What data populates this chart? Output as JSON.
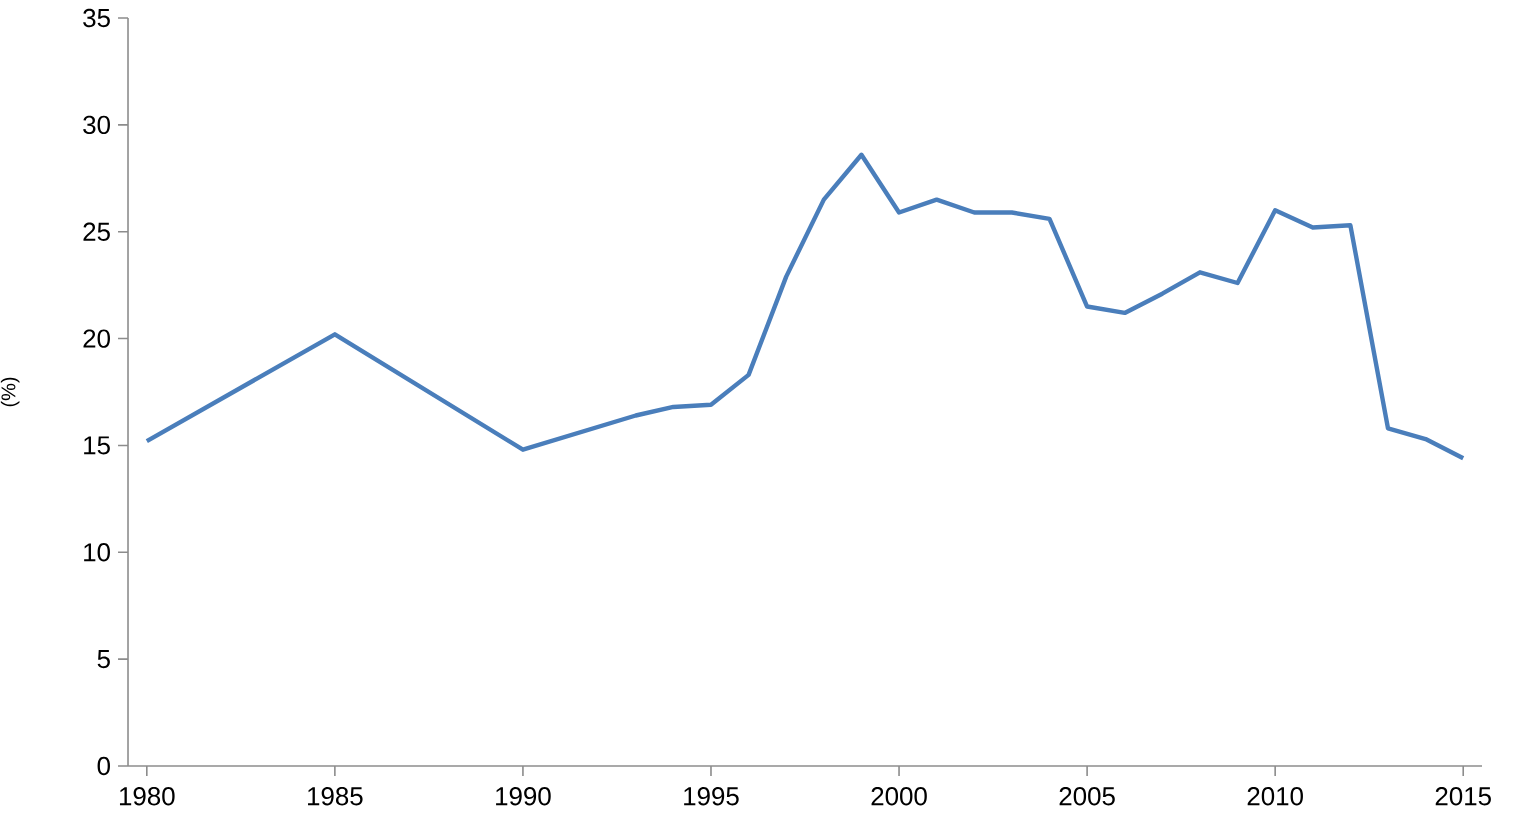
{
  "chart_data": {
    "type": "line",
    "ylabel": "(%)",
    "x": [
      1980,
      1985,
      1990,
      1993,
      1994,
      1995,
      1996,
      1997,
      1998,
      1999,
      2000,
      2001,
      2002,
      2003,
      2004,
      2005,
      2006,
      2007,
      2008,
      2009,
      2010,
      2011,
      2012,
      2013,
      2014,
      2015
    ],
    "series": [
      {
        "color": "#4a7ebb",
        "values": [
          15.2,
          20.2,
          14.8,
          16.4,
          16.8,
          16.9,
          18.3,
          22.9,
          26.5,
          28.6,
          25.9,
          26.5,
          25.9,
          25.9,
          25.6,
          21.5,
          21.2,
          22.1,
          23.1,
          22.6,
          26.0,
          25.2,
          25.3,
          15.8,
          15.3,
          14.4
        ]
      }
    ],
    "xlim": [
      1979.5,
      2015.5
    ],
    "ylim": [
      0,
      35
    ],
    "xticks": [
      1980,
      1985,
      1990,
      1995,
      2000,
      2005,
      2010,
      2015
    ],
    "yticks": [
      0,
      5,
      10,
      15,
      20,
      25,
      30,
      35
    ],
    "marker": "none",
    "line_style": "solid"
  }
}
